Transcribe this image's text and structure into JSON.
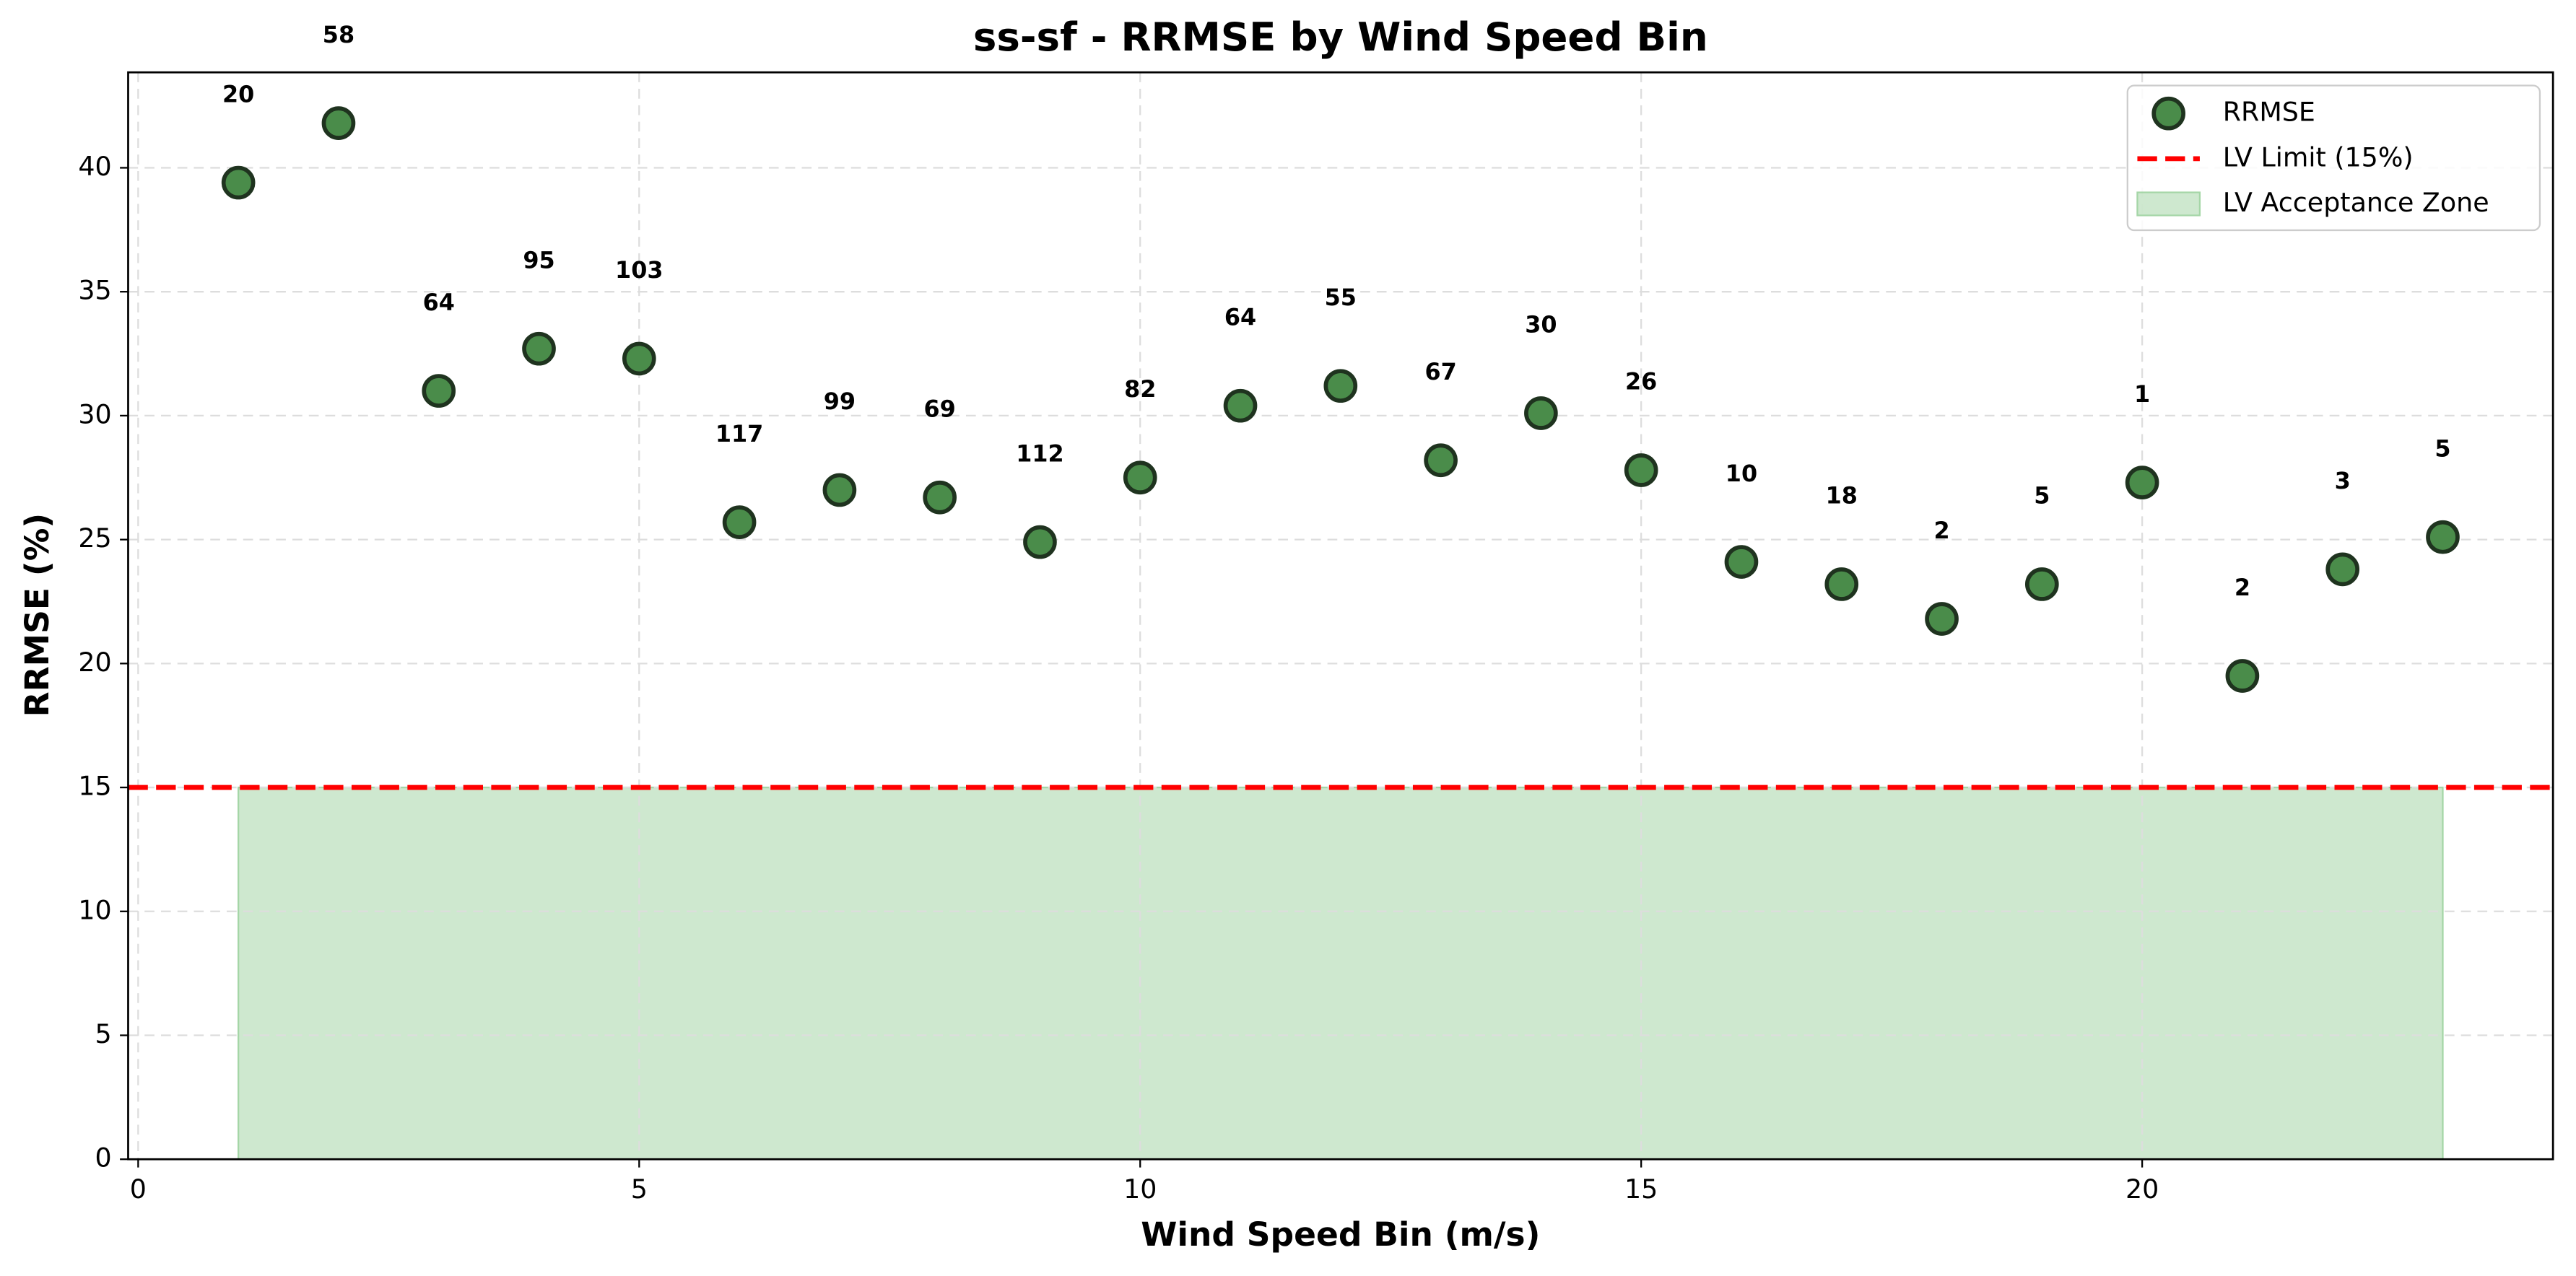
{
  "chart_data": {
    "type": "scatter",
    "title": "ss-sf - RRMSE by Wind Speed Bin",
    "x_label": "Wind Speed Bin (m/s)",
    "y_label": "RRMSE (%)",
    "x": [
      1,
      2,
      3,
      4,
      5,
      6,
      7,
      8,
      9,
      10,
      11,
      12,
      13,
      14,
      15,
      16,
      17,
      18,
      19,
      20,
      21,
      22,
      23
    ],
    "series": [
      {
        "name": "RRMSE",
        "color": "#4a8c4a",
        "values": [
          39.4,
          41.8,
          31.0,
          32.7,
          32.3,
          25.7,
          27.0,
          26.7,
          24.9,
          27.5,
          30.4,
          31.2,
          28.2,
          30.1,
          27.8,
          24.1,
          23.2,
          21.8,
          23.2,
          27.3,
          19.5,
          23.8,
          25.1
        ],
        "point_labels": [
          20,
          58,
          64,
          95,
          103,
          117,
          99,
          69,
          112,
          82,
          64,
          55,
          67,
          30,
          26,
          10,
          18,
          2,
          5,
          1,
          2,
          3,
          5
        ]
      }
    ],
    "hlines": [
      {
        "name": "LV Limit (15%)",
        "y": 15,
        "color": "#ff0000"
      }
    ],
    "spans": [
      {
        "name": "LV Acceptance Zone",
        "x": [
          1,
          23
        ],
        "y": [
          0,
          15
        ],
        "color": "#a5d6a7"
      }
    ],
    "xlim": [
      -0.1,
      24.1
    ],
    "ylim": [
      0,
      43.85
    ],
    "xticks": [
      0,
      5,
      10,
      15,
      20
    ],
    "yticks": [
      0,
      5,
      10,
      15,
      20,
      25,
      30,
      35,
      40
    ],
    "grid": true,
    "legend": "upper right"
  }
}
